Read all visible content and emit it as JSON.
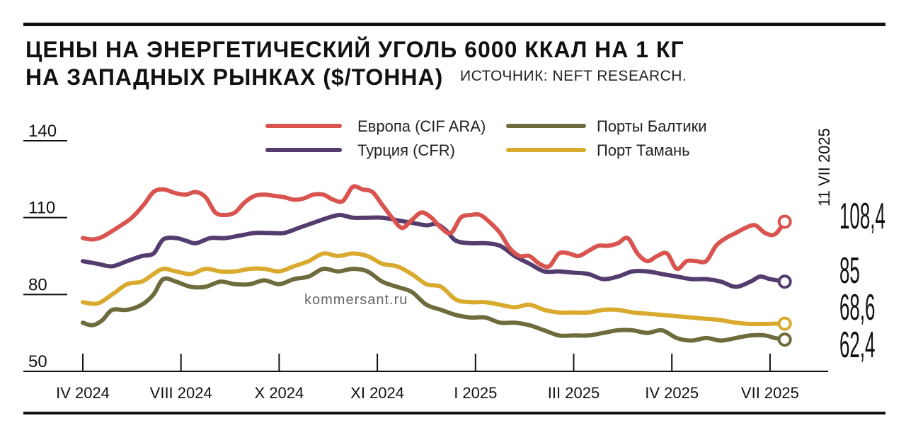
{
  "header": {
    "title_line1": "ЦЕНЫ НА ЭНЕРГЕТИЧЕСКИЙ УГОЛЬ 6000 ККАЛ НА 1 КГ",
    "title_line2": "НА ЗАПАДНЫХ РЫНКАХ ($/ТОННА)",
    "source": "ИСТОЧНИК: NEFT RESEARCH."
  },
  "watermark": "kommersant.ru",
  "colors": {
    "europe": "#d9534f",
    "turkey": "#553c6e",
    "baltic": "#6e6b3d",
    "taman": "#d9aa2e",
    "axis": "#111111"
  },
  "chart_data": {
    "type": "line",
    "title": "ЦЕНЫ НА ЭНЕРГЕТИЧЕСКИЙ УГОЛЬ 6000 ККАЛ НА 1 КГ НА ЗАПАДНЫХ РЫНКАХ ($/ТОННА)",
    "ylim": [
      50,
      140
    ],
    "yticks": [
      140,
      110,
      80,
      50
    ],
    "x_tick_labels": [
      "IV 2024",
      "VIII 2024",
      "X 2024",
      "XI 2024",
      "I 2025",
      "III 2025",
      "IV 2025",
      "VII 2025"
    ],
    "xlim": [
      0,
      7.6
    ],
    "end_date_label": "11 VII 2025",
    "legend_position": "top-center",
    "grid": false,
    "series": [
      {
        "name": "Европа (CIF ARA)",
        "color_key": "europe",
        "last_value_label": "108,4",
        "points": [
          [
            0,
            102
          ],
          [
            0.1,
            101.5
          ],
          [
            0.2,
            102.5
          ],
          [
            0.35,
            106
          ],
          [
            0.5,
            110
          ],
          [
            0.62,
            115
          ],
          [
            0.72,
            120
          ],
          [
            0.82,
            121
          ],
          [
            0.95,
            119.5
          ],
          [
            1.05,
            119
          ],
          [
            1.15,
            120
          ],
          [
            1.25,
            118
          ],
          [
            1.35,
            112
          ],
          [
            1.45,
            111
          ],
          [
            1.55,
            112
          ],
          [
            1.65,
            116
          ],
          [
            1.75,
            118.5
          ],
          [
            1.85,
            119
          ],
          [
            1.95,
            118.5
          ],
          [
            2.05,
            118
          ],
          [
            2.15,
            117
          ],
          [
            2.25,
            117.5
          ],
          [
            2.35,
            119
          ],
          [
            2.45,
            119
          ],
          [
            2.55,
            117
          ],
          [
            2.65,
            116.5
          ],
          [
            2.75,
            122
          ],
          [
            2.85,
            121
          ],
          [
            2.95,
            120
          ],
          [
            3.05,
            115
          ],
          [
            3.15,
            110
          ],
          [
            3.25,
            106
          ],
          [
            3.35,
            109
          ],
          [
            3.45,
            112
          ],
          [
            3.55,
            110
          ],
          [
            3.65,
            106
          ],
          [
            3.75,
            104
          ],
          [
            3.85,
            110
          ],
          [
            3.95,
            111
          ],
          [
            4.05,
            111
          ],
          [
            4.15,
            108
          ],
          [
            4.25,
            104
          ],
          [
            4.35,
            98
          ],
          [
            4.45,
            95
          ],
          [
            4.55,
            95
          ],
          [
            4.65,
            92
          ],
          [
            4.75,
            91
          ],
          [
            4.85,
            96
          ],
          [
            4.95,
            96
          ],
          [
            5.05,
            95
          ],
          [
            5.15,
            97
          ],
          [
            5.25,
            99
          ],
          [
            5.35,
            99
          ],
          [
            5.45,
            100
          ],
          [
            5.55,
            102
          ],
          [
            5.65,
            96
          ],
          [
            5.75,
            93
          ],
          [
            5.85,
            95
          ],
          [
            5.95,
            96
          ],
          [
            6.05,
            90
          ],
          [
            6.15,
            93
          ],
          [
            6.25,
            93
          ],
          [
            6.35,
            93
          ],
          [
            6.45,
            99
          ],
          [
            6.55,
            102
          ],
          [
            6.65,
            104
          ],
          [
            6.75,
            106
          ],
          [
            6.85,
            107
          ],
          [
            6.95,
            104
          ],
          [
            7.05,
            103.5
          ],
          [
            7.15,
            108.4
          ]
        ]
      },
      {
        "name": "Турция (CFR)",
        "color_key": "turkey",
        "last_value_label": "85",
        "points": [
          [
            0,
            93
          ],
          [
            0.15,
            92
          ],
          [
            0.3,
            91
          ],
          [
            0.45,
            93
          ],
          [
            0.6,
            95
          ],
          [
            0.72,
            96
          ],
          [
            0.82,
            101.5
          ],
          [
            0.95,
            102
          ],
          [
            1.05,
            101
          ],
          [
            1.15,
            100
          ],
          [
            1.3,
            102
          ],
          [
            1.45,
            102
          ],
          [
            1.6,
            103
          ],
          [
            1.75,
            104
          ],
          [
            1.9,
            104
          ],
          [
            2.05,
            104
          ],
          [
            2.2,
            106
          ],
          [
            2.35,
            108
          ],
          [
            2.5,
            110
          ],
          [
            2.62,
            111
          ],
          [
            2.75,
            110
          ],
          [
            2.9,
            110
          ],
          [
            3.05,
            110
          ],
          [
            3.2,
            109
          ],
          [
            3.35,
            108
          ],
          [
            3.5,
            107
          ],
          [
            3.6,
            107.5
          ],
          [
            3.7,
            105
          ],
          [
            3.8,
            101
          ],
          [
            3.95,
            100
          ],
          [
            4.1,
            100
          ],
          [
            4.25,
            99
          ],
          [
            4.4,
            95
          ],
          [
            4.55,
            92
          ],
          [
            4.7,
            89
          ],
          [
            4.85,
            89
          ],
          [
            5.0,
            88.5
          ],
          [
            5.15,
            88
          ],
          [
            5.3,
            86
          ],
          [
            5.45,
            87
          ],
          [
            5.6,
            89
          ],
          [
            5.75,
            89
          ],
          [
            5.9,
            88
          ],
          [
            6.05,
            87
          ],
          [
            6.2,
            86
          ],
          [
            6.35,
            86
          ],
          [
            6.5,
            85
          ],
          [
            6.65,
            83
          ],
          [
            6.8,
            85
          ],
          [
            6.9,
            87
          ],
          [
            7.0,
            86
          ],
          [
            7.15,
            85
          ]
        ]
      },
      {
        "name": "Порты Балтики",
        "color_key": "baltic",
        "last_value_label": "62,4",
        "points": [
          [
            0,
            69
          ],
          [
            0.1,
            68
          ],
          [
            0.2,
            70
          ],
          [
            0.3,
            74
          ],
          [
            0.45,
            74
          ],
          [
            0.6,
            76
          ],
          [
            0.72,
            80
          ],
          [
            0.82,
            86
          ],
          [
            0.95,
            85
          ],
          [
            1.1,
            83
          ],
          [
            1.25,
            83
          ],
          [
            1.4,
            85
          ],
          [
            1.55,
            84
          ],
          [
            1.7,
            84
          ],
          [
            1.85,
            85.5
          ],
          [
            2.0,
            84
          ],
          [
            2.15,
            86
          ],
          [
            2.3,
            87
          ],
          [
            2.45,
            90
          ],
          [
            2.6,
            89
          ],
          [
            2.75,
            90
          ],
          [
            2.9,
            89
          ],
          [
            3.05,
            85
          ],
          [
            3.2,
            83
          ],
          [
            3.35,
            81
          ],
          [
            3.5,
            76
          ],
          [
            3.65,
            74
          ],
          [
            3.8,
            72
          ],
          [
            3.95,
            71
          ],
          [
            4.1,
            71
          ],
          [
            4.25,
            69
          ],
          [
            4.4,
            69
          ],
          [
            4.55,
            68
          ],
          [
            4.7,
            66
          ],
          [
            4.85,
            64
          ],
          [
            5.0,
            64
          ],
          [
            5.15,
            64
          ],
          [
            5.3,
            65
          ],
          [
            5.45,
            66
          ],
          [
            5.6,
            66
          ],
          [
            5.75,
            65
          ],
          [
            5.9,
            66
          ],
          [
            6.05,
            63
          ],
          [
            6.2,
            62
          ],
          [
            6.35,
            63
          ],
          [
            6.5,
            62
          ],
          [
            6.65,
            63
          ],
          [
            6.8,
            64
          ],
          [
            6.95,
            64
          ],
          [
            7.05,
            63
          ],
          [
            7.15,
            62.4
          ]
        ]
      },
      {
        "name": "Порт Тамань",
        "color_key": "taman",
        "last_value_label": "68,6",
        "points": [
          [
            0,
            77
          ],
          [
            0.15,
            76.5
          ],
          [
            0.3,
            80
          ],
          [
            0.45,
            84
          ],
          [
            0.6,
            85
          ],
          [
            0.72,
            88
          ],
          [
            0.82,
            90
          ],
          [
            0.95,
            89
          ],
          [
            1.1,
            88
          ],
          [
            1.25,
            90
          ],
          [
            1.4,
            89
          ],
          [
            1.55,
            89
          ],
          [
            1.7,
            90
          ],
          [
            1.85,
            90
          ],
          [
            2.0,
            89
          ],
          [
            2.15,
            91
          ],
          [
            2.3,
            93
          ],
          [
            2.45,
            96
          ],
          [
            2.6,
            95
          ],
          [
            2.75,
            96
          ],
          [
            2.9,
            95
          ],
          [
            3.05,
            92
          ],
          [
            3.2,
            91
          ],
          [
            3.35,
            88
          ],
          [
            3.5,
            84
          ],
          [
            3.65,
            83
          ],
          [
            3.8,
            78
          ],
          [
            3.95,
            77
          ],
          [
            4.1,
            77
          ],
          [
            4.25,
            76
          ],
          [
            4.4,
            75
          ],
          [
            4.55,
            76
          ],
          [
            4.7,
            74
          ],
          [
            4.85,
            73
          ],
          [
            5.0,
            73
          ],
          [
            5.15,
            73
          ],
          [
            5.3,
            74
          ],
          [
            5.45,
            74
          ],
          [
            5.6,
            73
          ],
          [
            5.75,
            72.5
          ],
          [
            5.9,
            72
          ],
          [
            6.05,
            71.5
          ],
          [
            6.2,
            71
          ],
          [
            6.35,
            70.5
          ],
          [
            6.5,
            70
          ],
          [
            6.65,
            69
          ],
          [
            6.8,
            68.5
          ],
          [
            6.95,
            68.5
          ],
          [
            7.05,
            68.6
          ],
          [
            7.15,
            68.6
          ]
        ]
      }
    ]
  }
}
